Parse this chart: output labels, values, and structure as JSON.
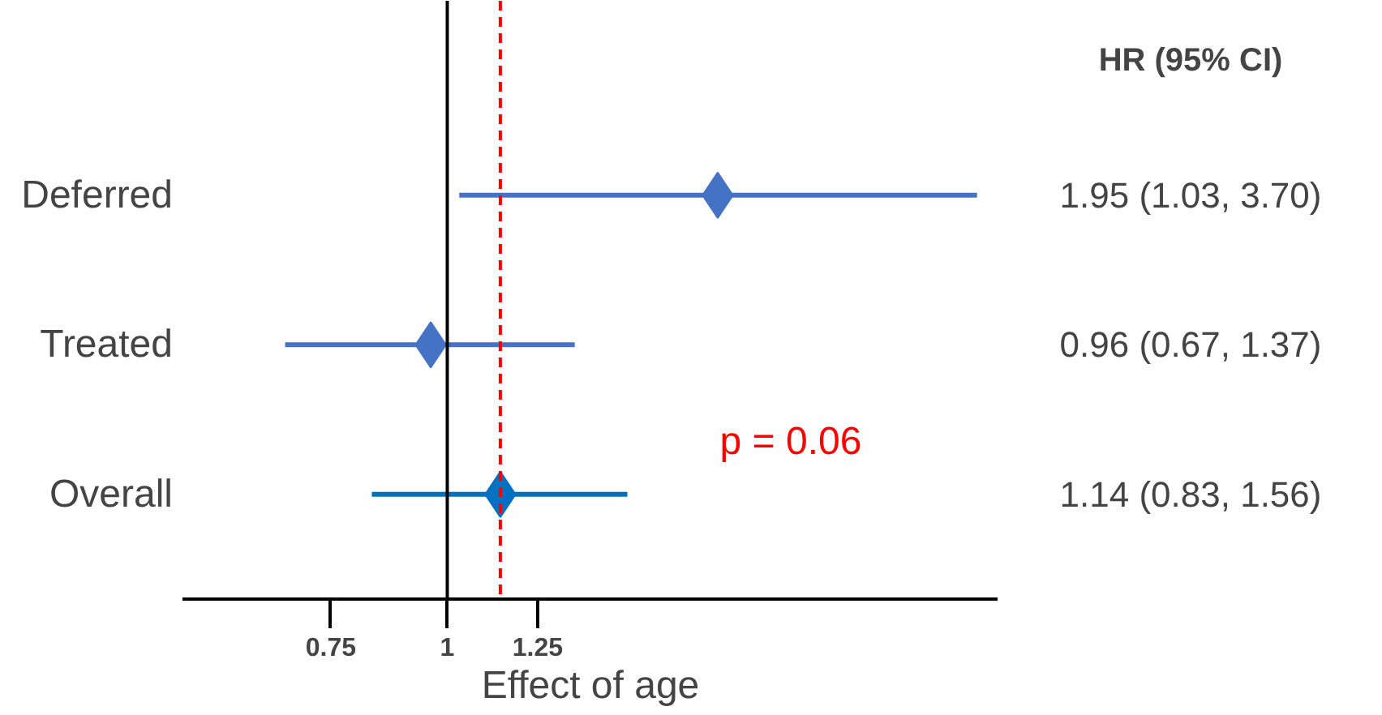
{
  "chart_data": {
    "type": "scatter",
    "orientation": "horizontal",
    "log": "x",
    "categories": [
      "Deferred",
      "Treated",
      "Overall"
    ],
    "values": [
      1.95,
      0.96,
      1.14
    ],
    "errors": [
      [
        1.03,
        3.7
      ],
      [
        0.67,
        1.37
      ],
      [
        0.83,
        1.56
      ]
    ],
    "colors": [
      "#4472c4",
      "#4472c4",
      "#0070c0"
    ],
    "value_labels": [
      "1.95 (1.03, 3.70)",
      "0.96 (0.67, 1.37)",
      "1.14 (0.83, 1.56)"
    ],
    "xlabel": "Effect of age",
    "xlim": [
      0.52,
      3.9
    ],
    "xticks": [
      0.75,
      1,
      1.25
    ],
    "ref_lines": [
      {
        "axis": "x",
        "value": 1,
        "color": "#000000",
        "line_style": "solid"
      },
      {
        "axis": "x",
        "value": 1.14,
        "color": "#ff0000",
        "line_style": "dashed"
      }
    ],
    "annotations": [
      "HR (95% CI)",
      "p = 0.06"
    ],
    "marker": "diamond",
    "grid": false
  }
}
